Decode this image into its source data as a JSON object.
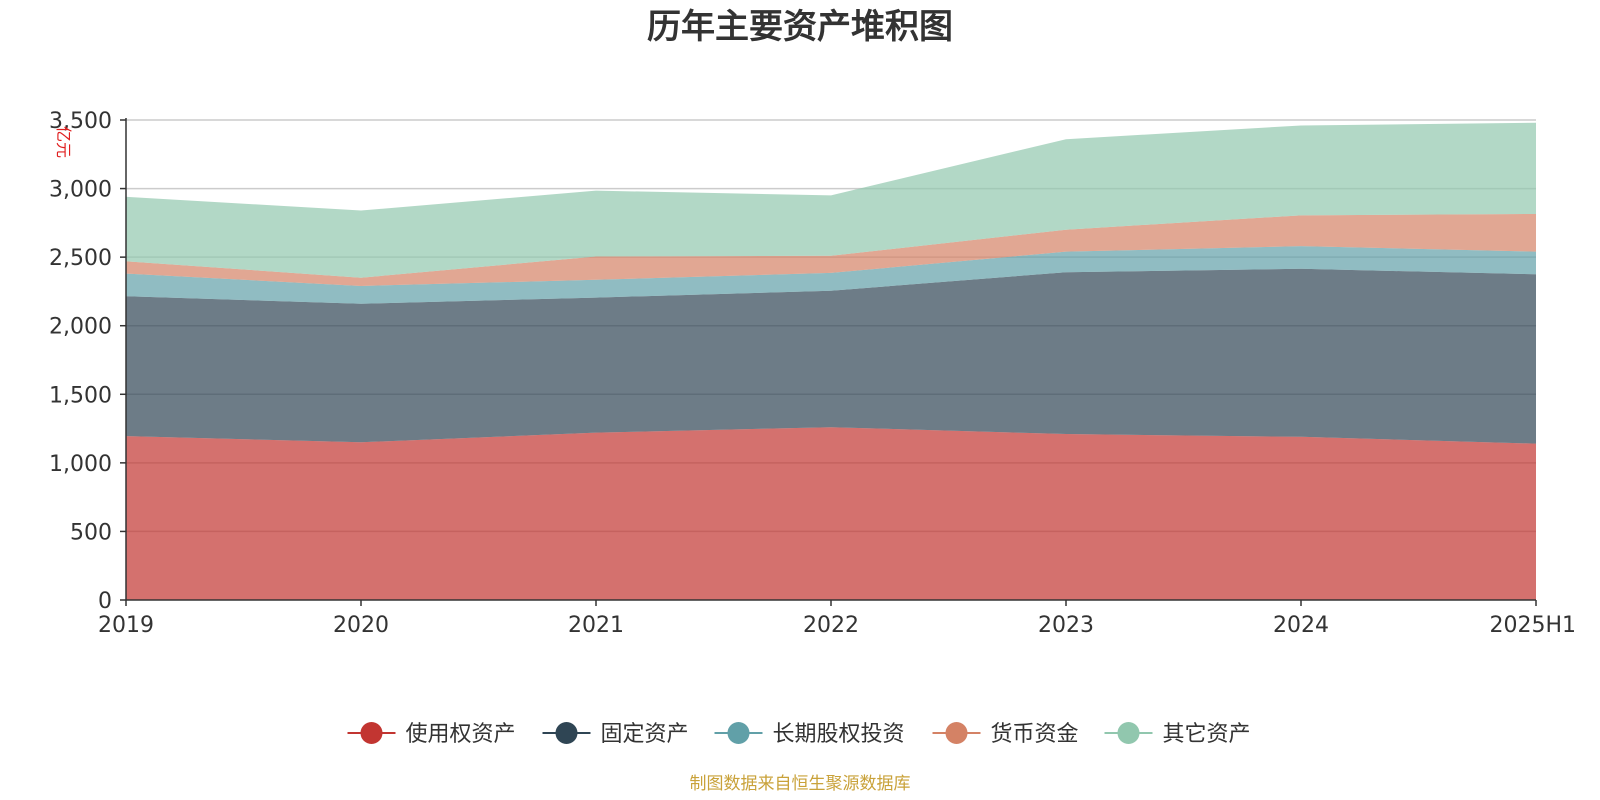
{
  "chart_data": {
    "type": "area",
    "stacked": true,
    "title": "历年主要资产堆积图",
    "unit_label": "亿元",
    "categories": [
      "2019",
      "2020",
      "2021",
      "2022",
      "2023",
      "2024",
      "2025H1"
    ],
    "ylim": [
      0,
      3500
    ],
    "yticks": [
      0,
      500,
      1000,
      1500,
      2000,
      2500,
      3000,
      3500
    ],
    "ytick_labels": [
      "0",
      "500",
      "1,000",
      "1,500",
      "2,000",
      "2,500",
      "3,000",
      "3,500"
    ],
    "grid": true,
    "legend_position": "bottom",
    "series": [
      {
        "name": "使用权资产",
        "color": "#c23531",
        "values": [
          1195,
          1150,
          1220,
          1260,
          1210,
          1190,
          1140
        ]
      },
      {
        "name": "固定资产",
        "color": "#2f4554",
        "values": [
          1020,
          1010,
          985,
          995,
          1180,
          1225,
          1235
        ]
      },
      {
        "name": "长期股权投资",
        "color": "#61a0a8",
        "values": [
          165,
          130,
          130,
          130,
          150,
          165,
          165
        ]
      },
      {
        "name": "货币资金",
        "color": "#d48265",
        "values": [
          90,
          60,
          170,
          125,
          160,
          225,
          275
        ]
      },
      {
        "name": "其它资产",
        "color": "#91c7ae",
        "values": [
          470,
          490,
          480,
          440,
          660,
          655,
          665
        ]
      }
    ]
  },
  "footer": {
    "source": "制图数据来自恒生聚源数据库"
  }
}
